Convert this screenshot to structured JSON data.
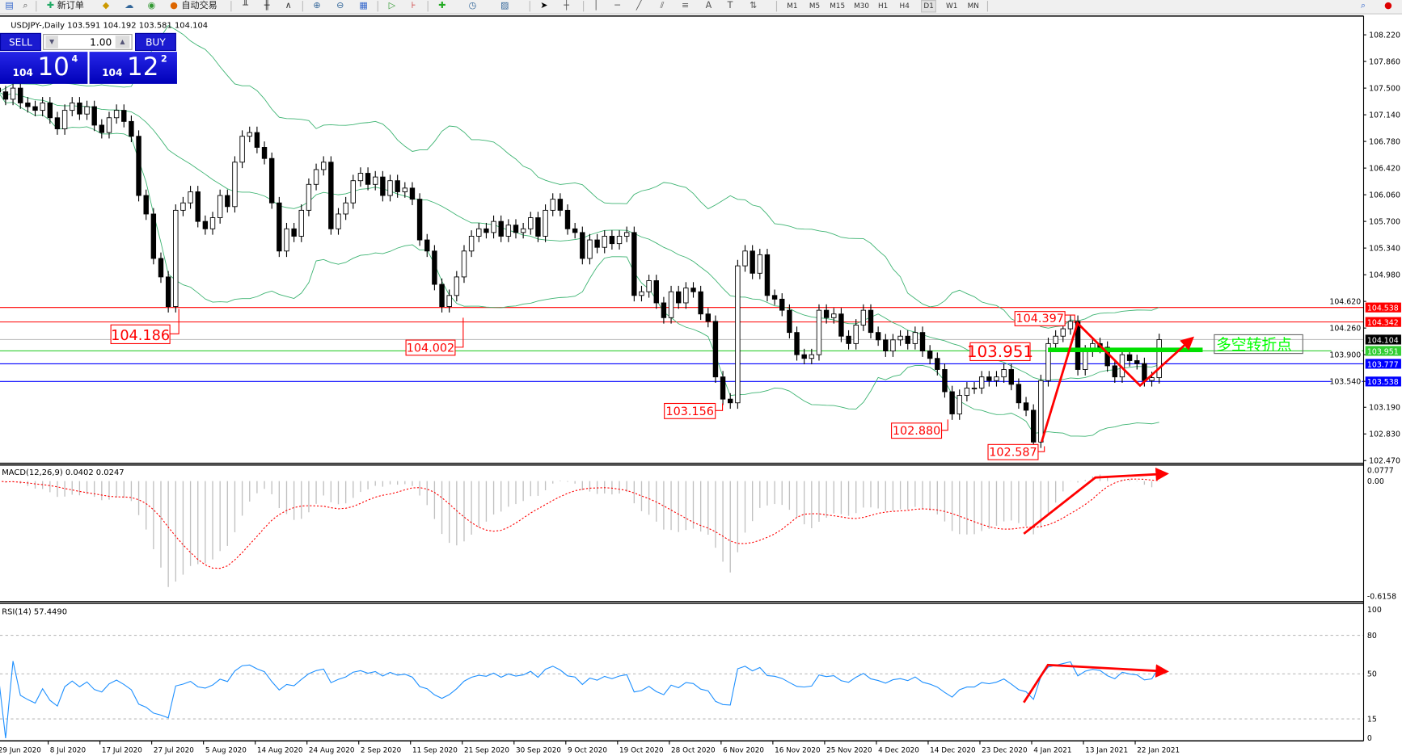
{
  "toolbar": {
    "new_order": "新订单",
    "auto_trading": "自动交易",
    "timeframes": [
      "M1",
      "M5",
      "M15",
      "M30",
      "H1",
      "H4",
      "D1",
      "W1",
      "MN"
    ],
    "active_timeframe": "D1"
  },
  "chart": {
    "symbol_line": "USDJPY-,Daily  103.591 104.192 103.581 104.104"
  },
  "trade_panel": {
    "sell": "SELL",
    "buy": "BUY",
    "lot": "1.00",
    "sell_price": {
      "small": "104",
      "big": "10",
      "sup": "4"
    },
    "buy_price": {
      "small": "104",
      "big": "12",
      "sup": "2"
    }
  },
  "colors": {
    "bands": "#3cb371",
    "resistance": "#ff0000",
    "support": "#0000ff",
    "pivot": "#00e000",
    "macd_hist": "#c0c0c0",
    "macd_signal": "#ff0000",
    "rsi": "#1e90ff",
    "arrows": "#ff0000"
  },
  "chart_data": {
    "type": "candlestick",
    "symbol": "USDJPY-",
    "timeframe": "Daily",
    "price_ticks": [
      "108.220",
      "107.860",
      "107.500",
      "107.140",
      "106.780",
      "106.420",
      "106.060",
      "105.700",
      "105.340",
      "104.980",
      "104.620",
      "104.260",
      "103.900",
      "103.540",
      "103.190",
      "102.830",
      "102.470"
    ],
    "price_range": [
      102.47,
      108.22
    ],
    "date_labels": [
      "29 Jun 2020",
      "8 Jul 2020",
      "17 Jul 2020",
      "27 Jul 2020",
      "5 Aug 2020",
      "14 Aug 2020",
      "24 Aug 2020",
      "2 Sep 2020",
      "11 Sep 2020",
      "21 Sep 2020",
      "30 Sep 2020",
      "9 Oct 2020",
      "19 Oct 2020",
      "28 Oct 2020",
      "6 Nov 2020",
      "16 Nov 2020",
      "25 Nov 2020",
      "4 Dec 2020",
      "14 Dec 2020",
      "23 Dec 2020",
      "4 Jan 2021",
      "13 Jan 2021",
      "22 Jan 2021"
    ],
    "close": [
      107.45,
      107.35,
      107.5,
      107.3,
      107.25,
      107.2,
      107.3,
      107.1,
      106.95,
      107.2,
      107.3,
      107.15,
      107.25,
      107.0,
      106.9,
      107.1,
      107.2,
      107.05,
      106.85,
      106.05,
      105.8,
      105.2,
      104.95,
      104.55,
      105.85,
      105.95,
      106.1,
      105.7,
      105.6,
      105.75,
      106.05,
      105.9,
      106.5,
      106.85,
      106.9,
      106.7,
      106.55,
      105.95,
      105.3,
      105.6,
      105.5,
      105.85,
      106.2,
      106.4,
      106.5,
      105.6,
      105.8,
      105.95,
      106.25,
      106.35,
      106.2,
      106.3,
      106.05,
      106.25,
      106.1,
      106.15,
      106.0,
      105.45,
      105.3,
      104.85,
      104.55,
      104.7,
      104.95,
      105.3,
      105.5,
      105.6,
      105.55,
      105.7,
      105.5,
      105.65,
      105.55,
      105.6,
      105.75,
      105.5,
      105.85,
      106.0,
      105.85,
      105.6,
      105.55,
      105.2,
      105.45,
      105.35,
      105.5,
      105.4,
      105.5,
      105.55,
      104.7,
      104.75,
      104.9,
      104.6,
      104.4,
      104.75,
      104.6,
      104.8,
      104.75,
      104.45,
      104.35,
      103.6,
      103.3,
      103.25,
      105.1,
      105.3,
      105.0,
      105.25,
      104.7,
      104.65,
      104.5,
      104.2,
      103.9,
      103.85,
      103.9,
      104.5,
      104.4,
      104.45,
      104.15,
      104.05,
      104.3,
      104.5,
      104.2,
      104.1,
      103.95,
      104.1,
      104.15,
      104.05,
      104.2,
      103.95,
      103.85,
      103.7,
      103.4,
      103.1,
      103.35,
      103.45,
      103.45,
      103.6,
      103.55,
      103.6,
      103.7,
      103.5,
      103.25,
      103.15,
      102.72,
      103.55,
      104.05,
      104.15,
      104.25,
      104.35,
      103.7,
      103.95,
      104.05,
      104.0,
      103.75,
      103.6,
      103.9,
      103.82,
      103.78,
      103.55,
      103.59,
      104.104
    ],
    "horizontal_lines": [
      {
        "price": 104.538,
        "label": "104.538",
        "color": "#ff0000"
      },
      {
        "price": 104.342,
        "label": "104.342",
        "color": "#ff0000"
      },
      {
        "price": 104.104,
        "label": "104.104",
        "color": "#000000",
        "line_color": "#c0c0c0"
      },
      {
        "price": 103.951,
        "label": "103.951",
        "color": "#32cd32"
      },
      {
        "price": 103.777,
        "label": "103.777",
        "color": "#0000ff"
      },
      {
        "price": 103.538,
        "label": "103.538",
        "color": "#0000ff"
      }
    ],
    "annotations": [
      "104.186",
      "104.002",
      "103.156",
      "102.880",
      "102.587",
      "104.397",
      "103.951"
    ],
    "note": "多空转折点",
    "indicators": {
      "bollinger": {
        "period": 20,
        "deviation": 2
      },
      "macd": {
        "label": "MACD(12,26,9) 0.0402 0.0247",
        "ticks": [
          "0.0777",
          "0.00",
          "-0.6158"
        ],
        "range": [
          -0.6158,
          0.0777
        ]
      },
      "rsi": {
        "label": "RSI(14) 57.4490",
        "ticks": [
          "100",
          "80",
          "50",
          "15",
          "0"
        ],
        "levels": [
          80,
          50,
          15
        ]
      }
    }
  }
}
